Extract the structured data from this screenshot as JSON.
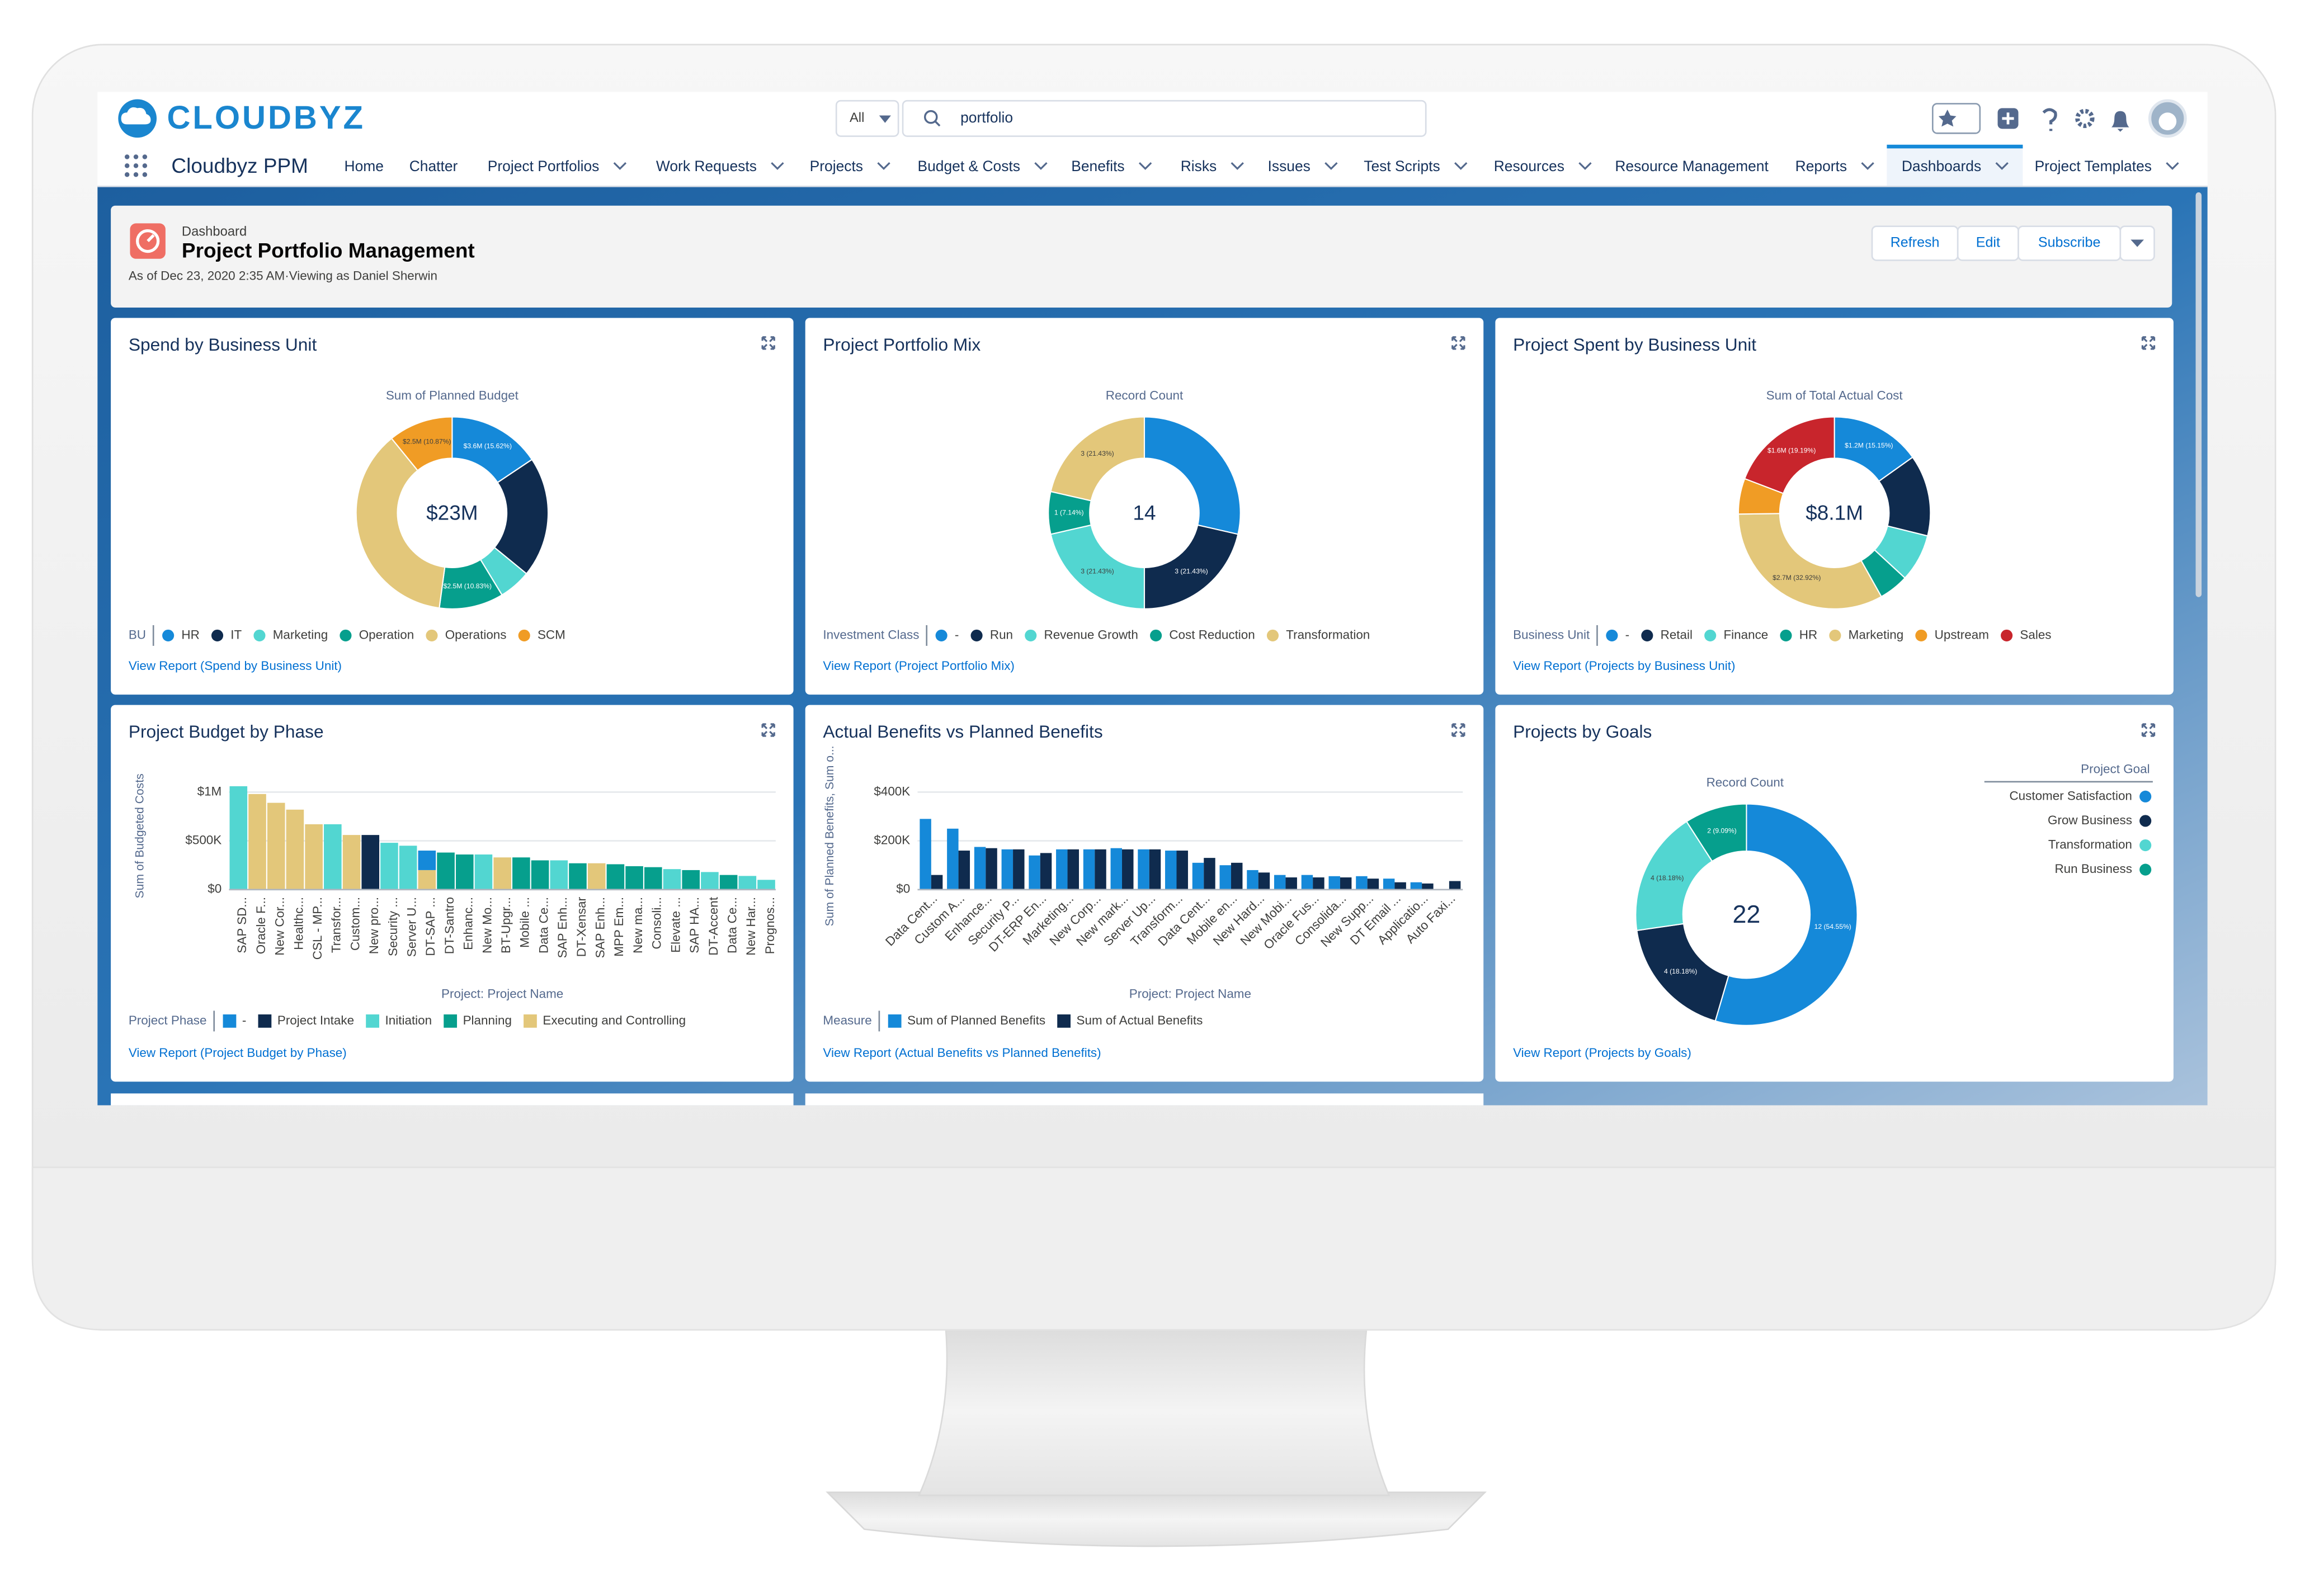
{
  "header": {
    "logo": "CLOUDBYZ",
    "search_scope": "All",
    "search_text": "portfolio",
    "app_name": "Cloudbyz PPM",
    "nav": [
      {
        "label": "Home"
      },
      {
        "label": "Chatter"
      },
      {
        "label": "Project Portfolios",
        "menu": true
      },
      {
        "label": "Work Requests",
        "menu": true
      },
      {
        "label": "Projects",
        "menu": true
      },
      {
        "label": "Budget & Costs",
        "menu": true
      },
      {
        "label": "Benefits",
        "menu": true
      },
      {
        "label": "Risks",
        "menu": true
      },
      {
        "label": "Issues",
        "menu": true
      },
      {
        "label": "Test Scripts",
        "menu": true
      },
      {
        "label": "Resources",
        "menu": true
      },
      {
        "label": "Resource Management"
      },
      {
        "label": "Reports",
        "menu": true
      },
      {
        "label": "Dashboards",
        "menu": true
      },
      {
        "label": "Project Templates",
        "menu": true
      }
    ],
    "active_nav": 13
  },
  "dashboard": {
    "label": "Dashboard",
    "title": "Project Portfolio Management",
    "meta": "As of Dec 23, 2020 2:35 AM·Viewing as Daniel Sherwin",
    "buttons": [
      "Refresh",
      "Edit",
      "Subscribe"
    ]
  },
  "chart_data": [
    {
      "type": "donut",
      "title": "Spend by Business Unit",
      "subtitle": "Sum of Planned Budget",
      "center_label": "$23M",
      "categories": [
        "HR",
        "IT",
        "Marketing",
        "Operation",
        "Operations",
        "SCM"
      ],
      "values": [
        15.62,
        20.3,
        5.4,
        10.83,
        37.0,
        10.87
      ],
      "value_labels": [
        "$3.6M (15.62%)",
        null,
        null,
        "$2.5M (10.83%)",
        null,
        "$2.5M (10.87%)"
      ],
      "colors": [
        "#1589d9",
        "#0f2b4e",
        "#52d6d1",
        "#069f8d",
        "#e3c77a",
        "#f09c25"
      ],
      "legend_title": "BU",
      "legend_position": "bottom",
      "link": "View Report (Spend by Business Unit)"
    },
    {
      "type": "donut",
      "title": "Project Portfolio Mix",
      "subtitle": "Record Count",
      "center_label": "14",
      "categories": [
        "-",
        "Run",
        "Revenue Growth",
        "Cost Reduction",
        "Transformation"
      ],
      "values": [
        4,
        3,
        3,
        1,
        3
      ],
      "value_labels": [
        null,
        "3 (21.43%)",
        "3 (21.43%)",
        "1 (7.14%)",
        "3 (21.43%)"
      ],
      "colors": [
        "#1589d9",
        "#0f2b4e",
        "#52d6d1",
        "#069f8d",
        "#e3c77a"
      ],
      "legend_title": "Investment Class",
      "legend_position": "bottom",
      "link": "View Report (Project Portfolio Mix)"
    },
    {
      "type": "donut",
      "title": "Project Spent by Business Unit",
      "subtitle": "Sum of Total Actual Cost",
      "center_label": "$8.1M",
      "categories": [
        "-",
        "Retail",
        "Finance",
        "HR",
        "Marketing",
        "Upstream",
        "Sales"
      ],
      "values": [
        15.15,
        13.7,
        8.0,
        5.0,
        32.92,
        6.0,
        19.19
      ],
      "value_labels": [
        "$1.2M (15.15%)",
        null,
        null,
        null,
        "$2.7M (32.92%)",
        null,
        "$1.6M (19.19%)"
      ],
      "colors": [
        "#1589d9",
        "#0f2b4e",
        "#52d6d1",
        "#069f8d",
        "#e3c77a",
        "#f09c25",
        "#c8252c"
      ],
      "legend_title": "Business Unit",
      "legend_position": "bottom",
      "link": "View Report (Projects by Business Unit)"
    },
    {
      "type": "bar",
      "stacked": true,
      "label_rotation": -90,
      "title": "Project Budget by Phase",
      "x_label": "Project: Project Name",
      "y_label": "Sum of Budgeted Costs",
      "categories": [
        "SAP SD...",
        "Oracle F...",
        "New Cor...",
        "Healthc...",
        "CSL - MP...",
        "Transfor...",
        "Custom...",
        "New pro...",
        "Security ...",
        "Server U...",
        "DT-SAP ...",
        "DT-Santro",
        "Enhanc...",
        "New Mo...",
        "BT-Upgr...",
        "Mobile ...",
        "Data Ce...",
        "SAP Enh...",
        "DT-Xensar",
        "SAP Enh...",
        "MPP Em...",
        "New ma...",
        "Consoli...",
        "Elevate ...",
        "SAP HA...",
        "DT-Accent",
        "Data Ce...",
        "New Har...",
        "Prognos..."
      ],
      "series": [
        {
          "name": "-",
          "color": "#1589d9",
          "values": [
            null,
            null,
            null,
            null,
            null,
            null,
            null,
            null,
            null,
            null,
            200000,
            null,
            null,
            null,
            null,
            null,
            null,
            null,
            null,
            null,
            null,
            null,
            null,
            null,
            null,
            null,
            null,
            null,
            null
          ]
        },
        {
          "name": "Project Intake",
          "color": "#0f2b4e",
          "values": [
            null,
            null,
            null,
            null,
            null,
            null,
            null,
            560000,
            null,
            null,
            null,
            null,
            null,
            null,
            null,
            null,
            null,
            null,
            null,
            null,
            null,
            null,
            null,
            null,
            null,
            null,
            null,
            null,
            null
          ]
        },
        {
          "name": "Initiation",
          "color": "#52d6d1",
          "values": [
            1060000,
            null,
            null,
            null,
            null,
            670000,
            null,
            null,
            480000,
            450000,
            null,
            null,
            null,
            360000,
            null,
            null,
            null,
            300000,
            null,
            null,
            null,
            null,
            null,
            210000,
            null,
            180000,
            null,
            140000,
            100000
          ]
        },
        {
          "name": "Planning",
          "color": "#069f8d",
          "values": [
            null,
            null,
            null,
            null,
            null,
            null,
            null,
            null,
            null,
            null,
            null,
            380000,
            360000,
            null,
            null,
            330000,
            300000,
            null,
            270000,
            null,
            260000,
            240000,
            230000,
            null,
            200000,
            null,
            150000,
            null,
            null
          ]
        },
        {
          "name": "Executing and Controlling",
          "color": "#e3c77a",
          "values": [
            null,
            980000,
            890000,
            820000,
            670000,
            null,
            560000,
            null,
            null,
            null,
            200000,
            null,
            null,
            null,
            330000,
            null,
            null,
            null,
            null,
            270000,
            null,
            null,
            null,
            null,
            null,
            null,
            null,
            null,
            null
          ]
        }
      ],
      "ylim": [
        0,
        1100000
      ],
      "yticks": [
        {
          "value": 0,
          "label": "$0"
        },
        {
          "value": 500000,
          "label": "$500K"
        },
        {
          "value": 1000000,
          "label": "$1M"
        }
      ],
      "grid": true,
      "legend_title": "Project Phase",
      "link": "View Report (Project Budget by Phase)"
    },
    {
      "type": "bar",
      "stacked": false,
      "label_rotation": -45,
      "title": "Actual Benefits vs Planned Benefits",
      "x_label": "Project: Project Name",
      "y_label": "Sum of Planned Benefits, Sum o...",
      "categories": [
        "Data Cent...",
        "Custom A...",
        "Enhance...",
        "Security P...",
        "DT-ERP En...",
        "Marketing...",
        "New Corp...",
        "New mark...",
        "Server Up...",
        "Transform...",
        "Data Cent...",
        "Mobile en...",
        "New Hard...",
        "New Mobi...",
        "Oracle Fus...",
        "Consolida...",
        "New Supp...",
        "DT Email ...",
        "Applicatio...",
        "Auto Faxi..."
      ],
      "series": [
        {
          "name": "Sum of Planned Benefits",
          "color": "#1589d9",
          "values": [
            290000,
            250000,
            175000,
            165000,
            140000,
            165000,
            165000,
            170000,
            165000,
            160000,
            110000,
            100000,
            80000,
            60000,
            60000,
            55000,
            55000,
            45000,
            30000,
            null
          ]
        },
        {
          "name": "Sum of Actual Benefits",
          "color": "#0f2b4e",
          "values": [
            60000,
            160000,
            170000,
            165000,
            150000,
            165000,
            165000,
            165000,
            165000,
            160000,
            130000,
            110000,
            70000,
            50000,
            50000,
            50000,
            45000,
            30000,
            25000,
            35000
          ]
        }
      ],
      "ylim": [
        0,
        440000
      ],
      "yticks": [
        {
          "value": 0,
          "label": "$0"
        },
        {
          "value": 200000,
          "label": "$200K"
        },
        {
          "value": 400000,
          "label": "$400K"
        }
      ],
      "grid": true,
      "legend_title": "Measure",
      "link": "View Report (Actual Benefits vs Planned Benefits)"
    },
    {
      "type": "donut",
      "title": "Projects by Goals",
      "subtitle": "Record Count",
      "center_label": "22",
      "categories": [
        "Customer Satisfaction",
        "Grow Business",
        "Transformation",
        "Run Business"
      ],
      "values": [
        12,
        4,
        4,
        2
      ],
      "value_labels": [
        "12 (54.55%)",
        "4 (18.18%)",
        "4 (18.18%)",
        "2 (9.09%)"
      ],
      "colors": [
        "#1589d9",
        "#0f2b4e",
        "#52d6d1",
        "#069f8d"
      ],
      "legend_title": "Project Goal",
      "legend_position": "right",
      "link": "View Report (Projects by Goals)"
    }
  ]
}
